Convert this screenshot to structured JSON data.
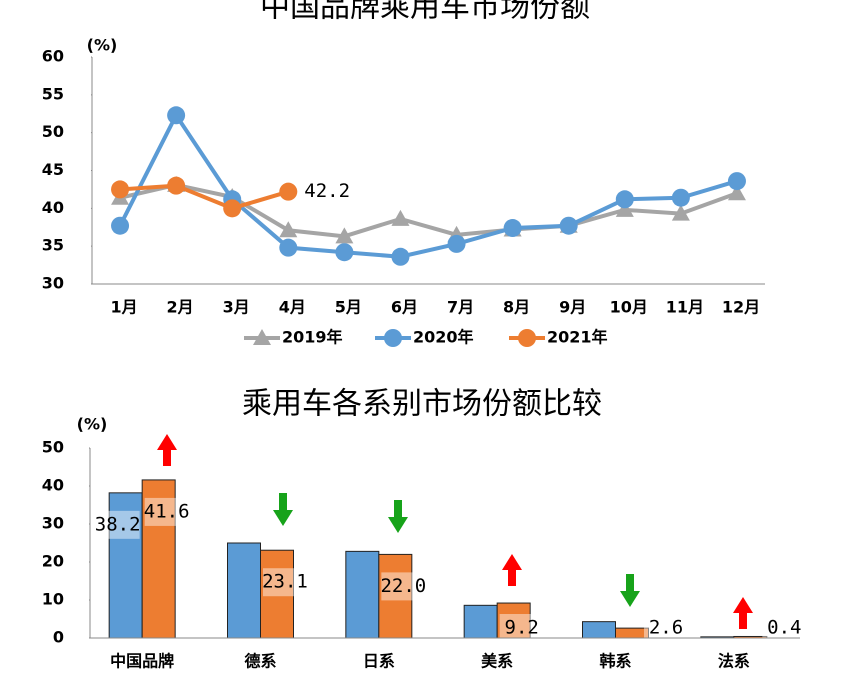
{
  "chart_data": [
    {
      "type": "line",
      "title": "中国品牌乘用车市场份额",
      "y_unit": "(%)",
      "categories": [
        "1月",
        "2月",
        "3月",
        "4月",
        "5月",
        "6月",
        "7月",
        "8月",
        "9月",
        "10月",
        "11月",
        "12月"
      ],
      "series": [
        {
          "name": "2019年",
          "color": "#a5a5a5",
          "marker": "triangle",
          "values": [
            41.4,
            43.1,
            41.5,
            37.1,
            36.3,
            38.6,
            36.5,
            37.2,
            37.7,
            39.8,
            39.3,
            42.0
          ]
        },
        {
          "name": "2020年",
          "color": "#5b9bd5",
          "marker": "circle",
          "values": [
            37.7,
            52.3,
            41.2,
            34.8,
            34.2,
            33.6,
            35.3,
            37.4,
            37.7,
            41.2,
            41.4,
            43.6
          ]
        },
        {
          "name": "2021年",
          "color": "#ed7d31",
          "marker": "circle",
          "values": [
            42.5,
            43.0,
            40.0,
            42.2,
            null,
            null,
            null,
            null,
            null,
            null,
            null,
            null
          ]
        }
      ],
      "annotation": "42.2",
      "ylim": [
        30,
        60
      ],
      "yticks": [
        30,
        35,
        40,
        45,
        50,
        55,
        60
      ],
      "legend": "bottom"
    },
    {
      "type": "bar",
      "title": "乘用车各系别市场份额比较",
      "y_unit": "(%)",
      "categories": [
        "中国品牌",
        "德系",
        "日系",
        "美系",
        "韩系",
        "法系"
      ],
      "series": [
        {
          "color": "#5b9bd5",
          "values": [
            38.2,
            25.0,
            22.8,
            8.6,
            4.3,
            0.3
          ],
          "value_labels": [
            "38.2",
            null,
            null,
            null,
            null,
            null
          ]
        },
        {
          "color": "#ed7d31",
          "values": [
            41.6,
            23.1,
            22.0,
            9.2,
            2.6,
            0.4
          ],
          "value_labels": [
            "41.6",
            "23.1",
            "22.0",
            "9.2",
            "2.6",
            "0.4"
          ]
        }
      ],
      "ylim": [
        0,
        50
      ],
      "yticks": [
        0,
        10,
        20,
        30,
        40,
        50
      ]
    }
  ]
}
